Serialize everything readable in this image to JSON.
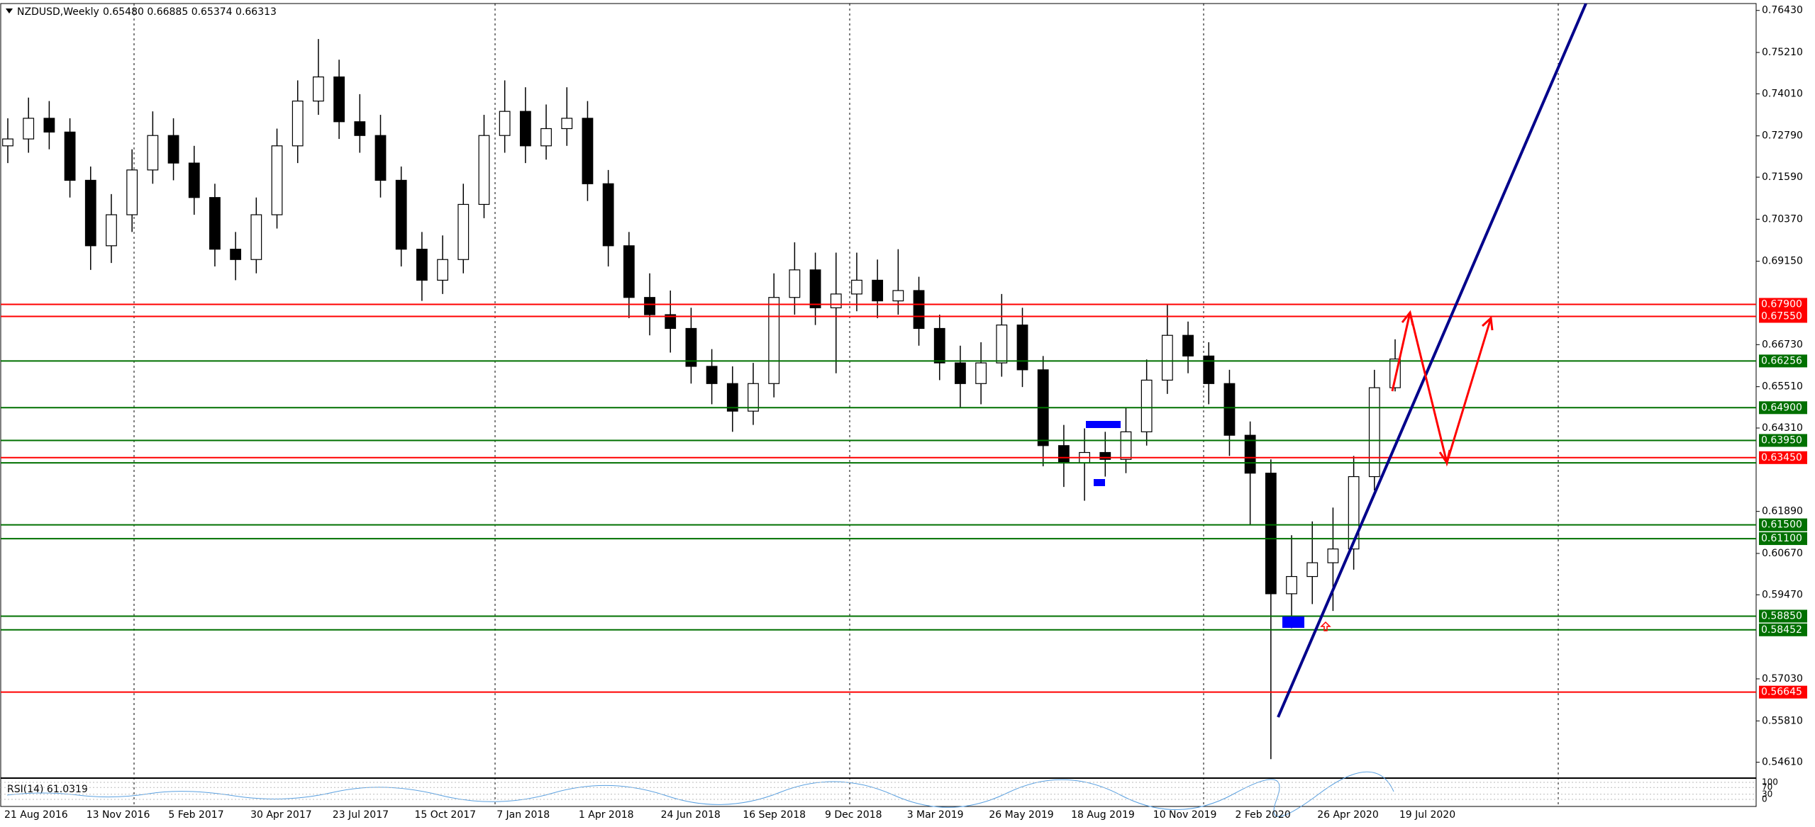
{
  "chart_data": {
    "type": "candlestick",
    "title": "NZDUSD,Weekly",
    "ohlc_label": "0.65480 0.66885 0.65374 0.66313",
    "bull_color": "#ffffff",
    "bear_color": "#000000",
    "open": [
      0.725,
      0.727,
      0.733,
      0.729,
      0.715,
      0.696,
      0.705,
      0.718,
      0.728,
      0.72,
      0.71,
      0.695,
      0.692,
      0.705,
      0.725,
      0.738,
      0.745,
      0.732,
      0.728,
      0.715,
      0.695,
      0.686,
      0.692,
      0.708,
      0.728,
      0.735,
      0.725,
      0.73,
      0.733,
      0.714,
      0.696,
      0.681,
      0.676,
      0.672,
      0.661,
      0.656,
      0.648,
      0.656,
      0.681,
      0.689,
      0.678,
      0.682,
      0.686,
      0.68,
      0.683,
      0.672,
      0.662,
      0.656,
      0.662,
      0.673,
      0.66,
      0.638,
      0.633,
      0.636,
      0.634,
      0.642,
      0.657,
      0.67,
      0.664,
      0.656,
      0.641,
      0.63,
      0.595,
      0.6,
      0.604,
      0.608,
      0.629,
      0.6548
    ],
    "high": [
      0.733,
      0.739,
      0.738,
      0.733,
      0.719,
      0.711,
      0.724,
      0.735,
      0.733,
      0.725,
      0.714,
      0.7,
      0.71,
      0.73,
      0.744,
      0.756,
      0.75,
      0.74,
      0.734,
      0.719,
      0.7,
      0.699,
      0.714,
      0.734,
      0.744,
      0.742,
      0.737,
      0.742,
      0.738,
      0.718,
      0.7,
      0.688,
      0.683,
      0.678,
      0.666,
      0.661,
      0.662,
      0.688,
      0.697,
      0.694,
      0.694,
      0.694,
      0.692,
      0.695,
      0.687,
      0.676,
      0.667,
      0.668,
      0.682,
      0.678,
      0.664,
      0.644,
      0.643,
      0.642,
      0.649,
      0.663,
      0.679,
      0.674,
      0.668,
      0.66,
      0.645,
      0.634,
      0.612,
      0.616,
      0.62,
      0.635,
      0.66,
      0.66885
    ],
    "low": [
      0.72,
      0.723,
      0.724,
      0.71,
      0.689,
      0.691,
      0.7,
      0.714,
      0.715,
      0.705,
      0.69,
      0.686,
      0.688,
      0.701,
      0.72,
      0.734,
      0.727,
      0.723,
      0.71,
      0.69,
      0.68,
      0.682,
      0.688,
      0.704,
      0.723,
      0.72,
      0.721,
      0.725,
      0.709,
      0.69,
      0.675,
      0.67,
      0.665,
      0.656,
      0.65,
      0.642,
      0.644,
      0.652,
      0.676,
      0.673,
      0.659,
      0.677,
      0.675,
      0.676,
      0.667,
      0.657,
      0.649,
      0.65,
      0.658,
      0.655,
      0.632,
      0.626,
      0.622,
      0.629,
      0.63,
      0.638,
      0.653,
      0.659,
      0.65,
      0.635,
      0.615,
      0.547,
      0.585,
      0.592,
      0.59,
      0.602,
      0.625,
      0.65374
    ],
    "close": [
      0.727,
      0.733,
      0.729,
      0.715,
      0.696,
      0.705,
      0.718,
      0.728,
      0.72,
      0.71,
      0.695,
      0.692,
      0.705,
      0.725,
      0.738,
      0.745,
      0.732,
      0.728,
      0.715,
      0.695,
      0.686,
      0.692,
      0.708,
      0.728,
      0.735,
      0.725,
      0.73,
      0.733,
      0.714,
      0.696,
      0.681,
      0.676,
      0.672,
      0.661,
      0.656,
      0.648,
      0.656,
      0.681,
      0.689,
      0.678,
      0.682,
      0.686,
      0.68,
      0.683,
      0.672,
      0.662,
      0.656,
      0.662,
      0.673,
      0.66,
      0.638,
      0.633,
      0.636,
      0.634,
      0.642,
      0.657,
      0.67,
      0.664,
      0.656,
      0.641,
      0.63,
      0.595,
      0.6,
      0.604,
      0.608,
      0.629,
      0.6548,
      0.66313
    ],
    "date_labels": [
      "21 Aug 2016",
      "13 Nov 2016",
      "5 Feb 2017",
      "30 Apr 2017",
      "23 Jul 2017",
      "15 Oct 2017",
      "7 Jan 2018",
      "1 Apr 2018",
      "24 Jun 2018",
      "16 Sep 2018",
      "9 Dec 2018",
      "3 Mar 2019",
      "26 May 2019",
      "18 Aug 2019",
      "10 Nov 2019",
      "2 Feb 2020",
      "26 Apr 2020",
      "19 Jul 2020"
    ],
    "ylim": [
      0.5417,
      0.7663
    ],
    "yticks": [
      {
        "value": 0.7643,
        "label": "0.76430"
      },
      {
        "value": 0.7521,
        "label": "0.75210"
      },
      {
        "value": 0.7401,
        "label": "0.74010"
      },
      {
        "value": 0.7279,
        "label": "0.72790"
      },
      {
        "value": 0.7159,
        "label": "0.71590"
      },
      {
        "value": 0.7037,
        "label": "0.70370"
      },
      {
        "value": 0.6915,
        "label": "0.69150"
      },
      {
        "value": 0.6673,
        "label": "0.66730"
      },
      {
        "value": 0.6551,
        "label": "0.65510"
      },
      {
        "value": 0.6431,
        "label": "0.64310"
      },
      {
        "value": 0.6189,
        "label": "0.61890"
      },
      {
        "value": 0.6067,
        "label": "0.60670"
      },
      {
        "value": 0.5947,
        "label": "0.59470"
      },
      {
        "value": 0.5703,
        "label": "0.57030"
      },
      {
        "value": 0.5581,
        "label": "0.55810"
      },
      {
        "value": 0.5461,
        "label": "0.54610"
      }
    ],
    "levels": [
      {
        "value": 0.679,
        "label": "0.67900",
        "color": "#ff0000"
      },
      {
        "value": 0.6755,
        "label": "0.67550",
        "color": "#ff0000"
      },
      {
        "value": 0.66256,
        "label": "0.66256",
        "color": "#007000"
      },
      {
        "value": 0.649,
        "label": "0.64900",
        "color": "#007000"
      },
      {
        "value": 0.6395,
        "label": "0.63950",
        "color": "#007000"
      },
      {
        "value": 0.633,
        "color": "#007000"
      },
      {
        "value": 0.6345,
        "label": "0.63450",
        "color": "#ff0000"
      },
      {
        "value": 0.615,
        "label": "0.61500",
        "color": "#007000"
      },
      {
        "value": 0.611,
        "label": "0.61100",
        "color": "#007000"
      },
      {
        "value": 0.5885,
        "label": "0.58850",
        "color": "#007000"
      },
      {
        "value": 0.58452,
        "label": "0.58452",
        "color": "#007000"
      },
      {
        "value": 0.56645,
        "label": "0.56645",
        "color": "#ff0000"
      }
    ],
    "indicator": {
      "label": "RSI(14) 61.0319",
      "ylim": [
        0,
        100
      ],
      "yticks": [
        100,
        70,
        30,
        0
      ]
    }
  }
}
